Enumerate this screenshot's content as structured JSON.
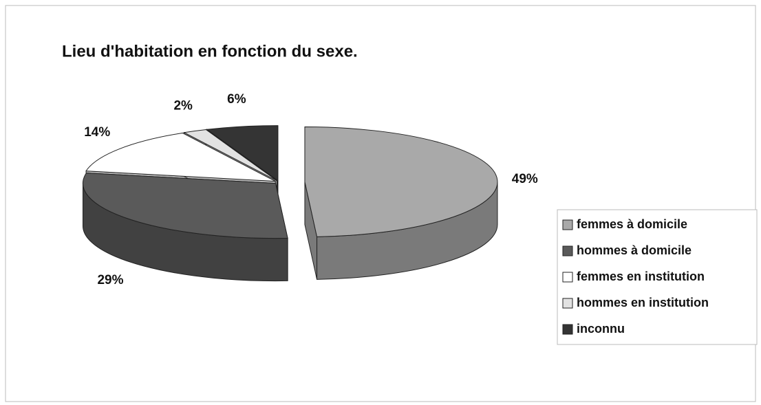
{
  "chart_data": {
    "type": "pie",
    "title": "Lieu d'habitation en fonction du sexe.",
    "categories": [
      "femmes à domicile",
      "hommes à domicile",
      "femmes en institution",
      "hommes en institution",
      "inconnu"
    ],
    "values": [
      49,
      29,
      14,
      2,
      6
    ],
    "value_labels": [
      "49%",
      "29%",
      "14%",
      "2%",
      "6%"
    ],
    "colors": [
      "#a9a9a9",
      "#5a5a5a",
      "#ffffff",
      "#e2e2e2",
      "#343434"
    ],
    "legend": "right"
  }
}
